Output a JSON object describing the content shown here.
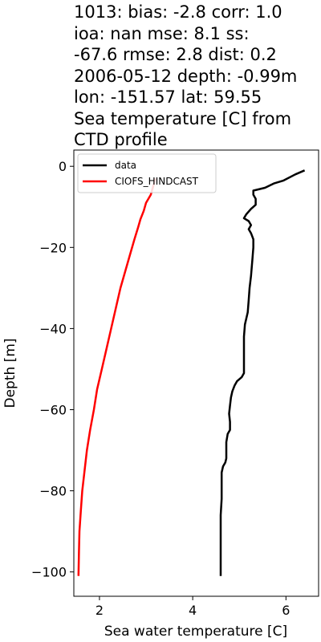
{
  "chart_data": {
    "type": "line",
    "title_lines": [
      "1013: bias: -2.8  corr: 1.0",
      "ioa: nan  mse: 8.1  ss:",
      "-67.6  rmse: 2.8  dist: 0.2",
      "2006-05-12 depth: -0.99m",
      "lon: -151.57 lat: 59.55",
      "Sea temperature [C] from",
      "CTD profile"
    ],
    "xlabel": "Sea water temperature [C]",
    "ylabel": "Depth [m]",
    "xlim": [
      1.45,
      6.7
    ],
    "ylim": [
      -106,
      4
    ],
    "xticks": [
      2,
      4,
      6
    ],
    "yticks": [
      0,
      -20,
      -40,
      -60,
      -80,
      -100
    ],
    "legend": {
      "placement": "top-left"
    },
    "grid": false,
    "series": [
      {
        "name": "data",
        "color": "#000000",
        "points": [
          [
            6.4,
            -1
          ],
          [
            6.2,
            -2
          ],
          [
            5.95,
            -3.5
          ],
          [
            5.75,
            -4.2
          ],
          [
            5.55,
            -5.3
          ],
          [
            5.3,
            -6
          ],
          [
            5.3,
            -7
          ],
          [
            5.35,
            -8
          ],
          [
            5.35,
            -9.5
          ],
          [
            5.25,
            -10.5
          ],
          [
            5.15,
            -11.8
          ],
          [
            5.1,
            -12.8
          ],
          [
            5.2,
            -13.5
          ],
          [
            5.25,
            -14.5
          ],
          [
            5.2,
            -15.5
          ],
          [
            5.25,
            -16.5
          ],
          [
            5.3,
            -18
          ],
          [
            5.3,
            -20
          ],
          [
            5.28,
            -23
          ],
          [
            5.25,
            -27
          ],
          [
            5.22,
            -30
          ],
          [
            5.2,
            -33
          ],
          [
            5.18,
            -36
          ],
          [
            5.12,
            -39
          ],
          [
            5.1,
            -42
          ],
          [
            5.1,
            -45
          ],
          [
            5.1,
            -48
          ],
          [
            5.1,
            -51
          ],
          [
            5.05,
            -52
          ],
          [
            4.95,
            -53
          ],
          [
            4.9,
            -54
          ],
          [
            4.85,
            -55.5
          ],
          [
            4.82,
            -57
          ],
          [
            4.8,
            -59
          ],
          [
            4.78,
            -61
          ],
          [
            4.8,
            -63
          ],
          [
            4.8,
            -65
          ],
          [
            4.75,
            -66
          ],
          [
            4.72,
            -68
          ],
          [
            4.72,
            -70
          ],
          [
            4.72,
            -72
          ],
          [
            4.7,
            -73
          ],
          [
            4.65,
            -74
          ],
          [
            4.62,
            -75.5
          ],
          [
            4.62,
            -78
          ],
          [
            4.62,
            -82
          ],
          [
            4.6,
            -86
          ],
          [
            4.6,
            -90
          ],
          [
            4.6,
            -95
          ],
          [
            4.6,
            -101
          ]
        ]
      },
      {
        "name": "CIOFS_HINDCAST",
        "color": "#ff0000",
        "points": [
          [
            3.2,
            -3
          ],
          [
            3.15,
            -5
          ],
          [
            3.1,
            -7
          ],
          [
            3.0,
            -9
          ],
          [
            2.95,
            -11
          ],
          [
            2.88,
            -13
          ],
          [
            2.83,
            -15
          ],
          [
            2.75,
            -18
          ],
          [
            2.65,
            -22
          ],
          [
            2.55,
            -26
          ],
          [
            2.45,
            -30
          ],
          [
            2.35,
            -35
          ],
          [
            2.25,
            -40
          ],
          [
            2.15,
            -45
          ],
          [
            2.05,
            -50
          ],
          [
            1.95,
            -55
          ],
          [
            1.88,
            -60
          ],
          [
            1.8,
            -65
          ],
          [
            1.73,
            -70
          ],
          [
            1.68,
            -75
          ],
          [
            1.63,
            -80
          ],
          [
            1.6,
            -85
          ],
          [
            1.57,
            -90
          ],
          [
            1.56,
            -95
          ],
          [
            1.55,
            -101
          ]
        ]
      }
    ]
  }
}
